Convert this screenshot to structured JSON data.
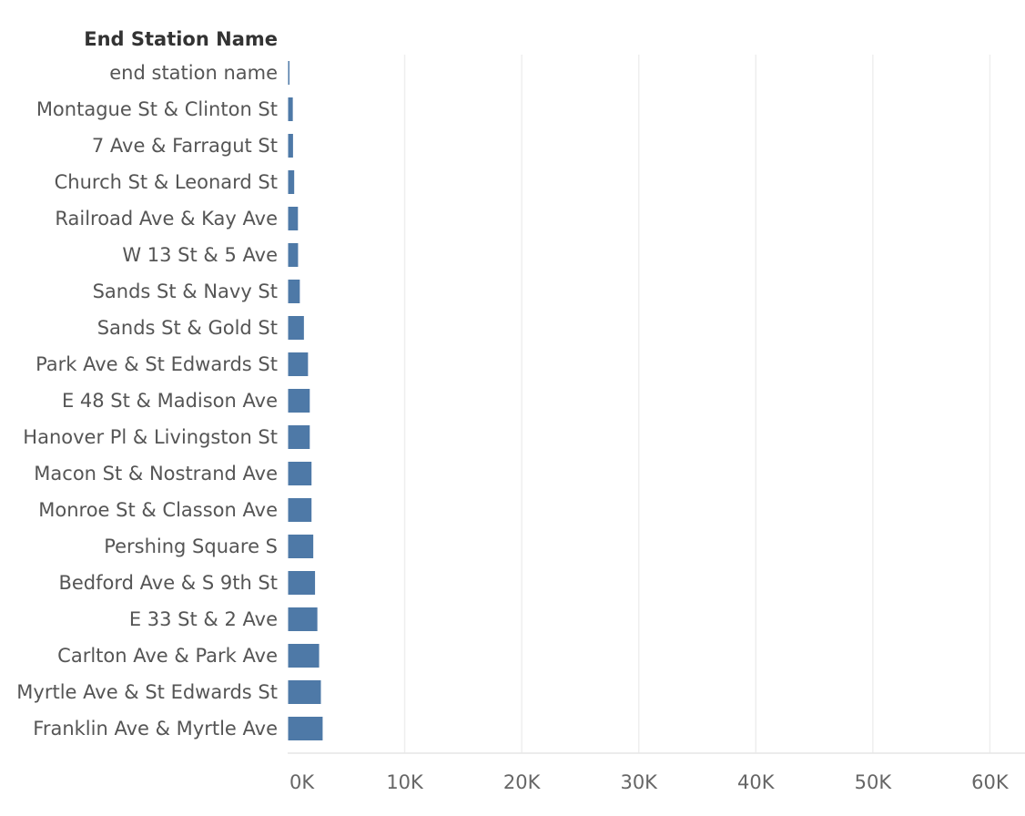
{
  "chart_data": {
    "type": "bar",
    "orientation": "horizontal",
    "title": "",
    "row_header": "End Station Name",
    "xlabel": "",
    "ylabel": "End Station Name",
    "xlim": [
      0,
      63000
    ],
    "x_ticks": [
      "0K",
      "10K",
      "20K",
      "30K",
      "40K",
      "50K",
      "60K"
    ],
    "x_tick_values": [
      0,
      10000,
      20000,
      30000,
      40000,
      50000,
      60000
    ],
    "grid": true,
    "bar_color": "#4e79a7",
    "categories": [
      "end station name",
      "Montague St & Clinton St",
      "7 Ave & Farragut St",
      "Church St & Leonard St",
      "Railroad Ave & Kay Ave",
      "W 13 St & 5 Ave",
      "Sands St & Navy St",
      "Sands St & Gold St",
      "Park Ave & St Edwards St",
      "E 48 St & Madison Ave",
      "Hanover Pl & Livingston St",
      "Macon St & Nostrand Ave",
      "Monroe St & Classon Ave",
      "Pershing Square S",
      "Bedford Ave & S 9th St",
      "E 33 St & 2 Ave",
      "Carlton Ave & Park Ave",
      "Myrtle Ave & St Edwards St",
      "Franklin Ave & Myrtle Ave"
    ],
    "values": [
      30,
      400,
      420,
      520,
      840,
      850,
      1000,
      1350,
      1700,
      1850,
      1850,
      2000,
      2000,
      2150,
      2300,
      2500,
      2650,
      2800,
      2950
    ]
  }
}
